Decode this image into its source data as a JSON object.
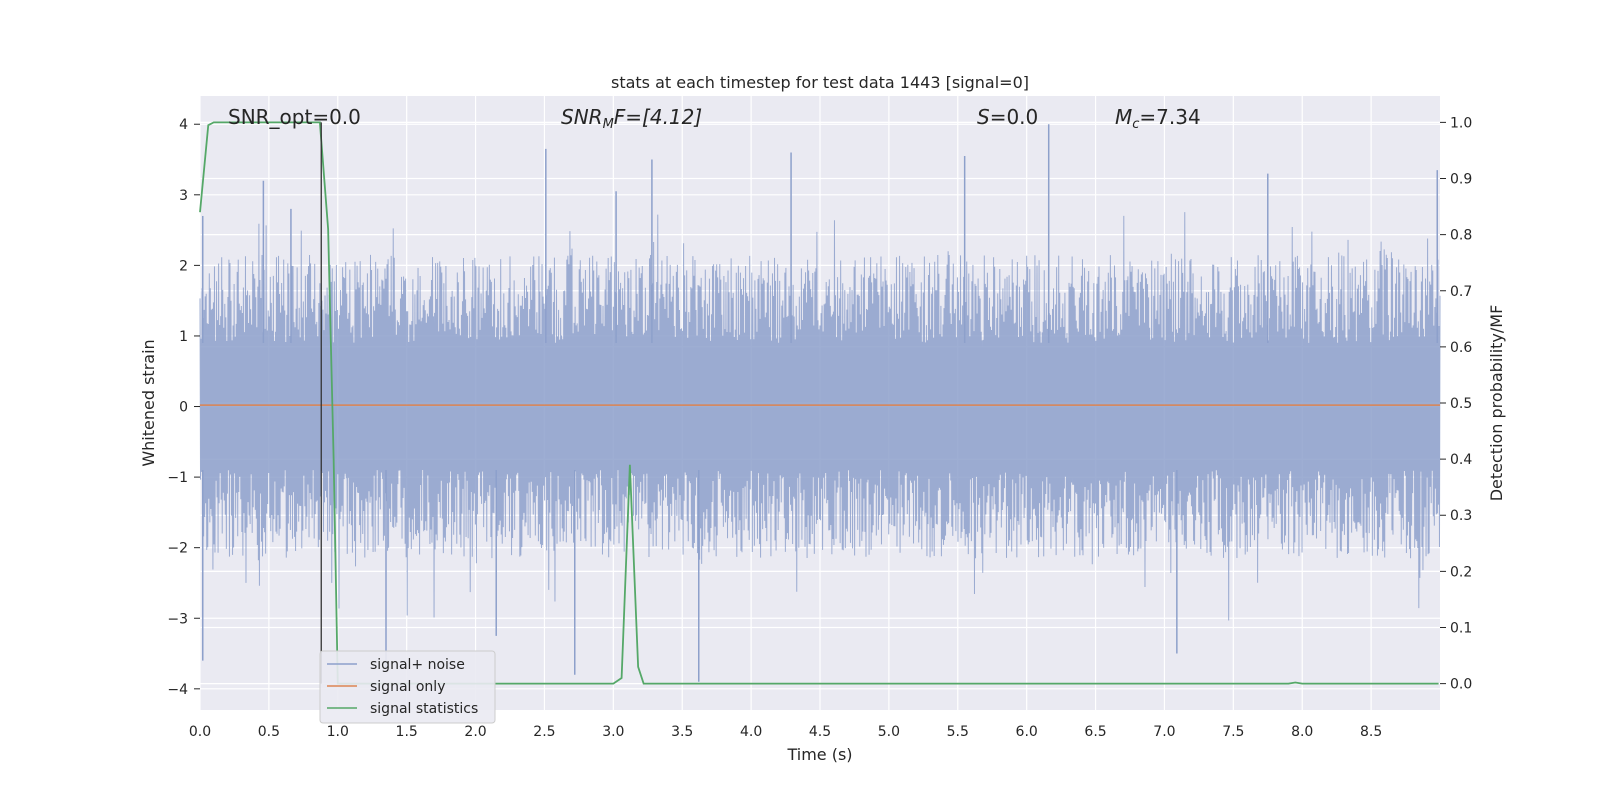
{
  "chart_data": {
    "type": "line",
    "title": "stats at each timestep for test data 1443 [signal=0]",
    "xlabel": "Time (s)",
    "ylabel": "Whitened strain",
    "y2label": "Detection probability/MF",
    "xlim": [
      0,
      9.0
    ],
    "ylim": [
      -4.3,
      4.4
    ],
    "y2lim": [
      -0.047,
      1.047
    ],
    "x_ticks": [
      "0.0",
      "0.5",
      "1.0",
      "1.5",
      "2.0",
      "2.5",
      "3.0",
      "3.5",
      "4.0",
      "4.5",
      "5.0",
      "5.5",
      "6.0",
      "6.5",
      "7.0",
      "7.5",
      "8.0",
      "8.5"
    ],
    "y_ticks": [
      "4",
      "3",
      "2",
      "1",
      "0",
      "−1",
      "−2",
      "−3",
      "−4"
    ],
    "y2_ticks": [
      "1.0",
      "0.9",
      "0.8",
      "0.7",
      "0.6",
      "0.5",
      "0.4",
      "0.3",
      "0.2",
      "0.1",
      "0.0"
    ],
    "grid": true,
    "legend_placement": "lower-left",
    "annotations": {
      "snr_opt": "SNR_opt=0.0",
      "snr_mf_label": "SNR",
      "snr_mf_sub": "M",
      "snr_mf_rest": "F=[4.12]",
      "s_label": "S",
      "s_rest": "=0.0",
      "mc_label": "M",
      "mc_sub": "c",
      "mc_rest": "=7.34"
    },
    "marker_line_x": 0.88,
    "series": [
      {
        "name": "signal+ noise",
        "color": "#8da0cb",
        "envelope_peaks": [
          {
            "x": 0.02,
            "y": 2.7,
            "y_min": -3.6
          },
          {
            "x": 0.46,
            "y": 3.2
          },
          {
            "x": 0.66,
            "y": 2.8
          },
          {
            "x": 2.51,
            "y": 3.65
          },
          {
            "x": 3.02,
            "y": 3.05
          },
          {
            "x": 3.28,
            "y": 3.5
          },
          {
            "x": 4.29,
            "y": 3.6
          },
          {
            "x": 5.55,
            "y": 3.55
          },
          {
            "x": 6.16,
            "y": 4.0
          },
          {
            "x": 7.75,
            "y": 3.3
          },
          {
            "x": 8.98,
            "y": 3.35
          },
          {
            "x": 1.35,
            "y": -3.75,
            "y_min": -3.75
          },
          {
            "x": 2.15,
            "y": -3.25,
            "y_min": -3.25
          },
          {
            "x": 2.72,
            "y": -3.8,
            "y_min": -3.8
          },
          {
            "x": 3.62,
            "y": -3.9,
            "y_min": -3.9
          },
          {
            "x": 7.09,
            "y": -3.5,
            "y_min": -3.5
          }
        ]
      },
      {
        "name": "signal only",
        "color": "#dd8452",
        "x": [
          0.0,
          9.0
        ],
        "y": [
          0.02,
          0.02
        ]
      },
      {
        "name": "signal statistics",
        "color": "#55a868",
        "axis": "y2",
        "x": [
          0.0,
          0.06,
          0.1,
          0.2,
          0.4,
          0.6,
          0.8,
          0.87,
          0.93,
          0.97,
          1.0,
          1.5,
          2.0,
          2.5,
          3.0,
          3.06,
          3.12,
          3.18,
          3.22,
          3.28,
          3.5,
          4.0,
          5.0,
          6.0,
          7.0,
          7.9,
          7.95,
          8.0,
          8.5,
          8.99
        ],
        "y": [
          0.84,
          0.995,
          1.0,
          1.0,
          1.0,
          1.0,
          1.0,
          1.0,
          0.81,
          0.4,
          0.0,
          0.0,
          0.0,
          0.0,
          0.0,
          0.01,
          0.39,
          0.03,
          0.0,
          0.0,
          0.0,
          0.0,
          0.0,
          0.0,
          0.0,
          0.0,
          0.002,
          0.0,
          0.0,
          0.0
        ]
      }
    ]
  }
}
